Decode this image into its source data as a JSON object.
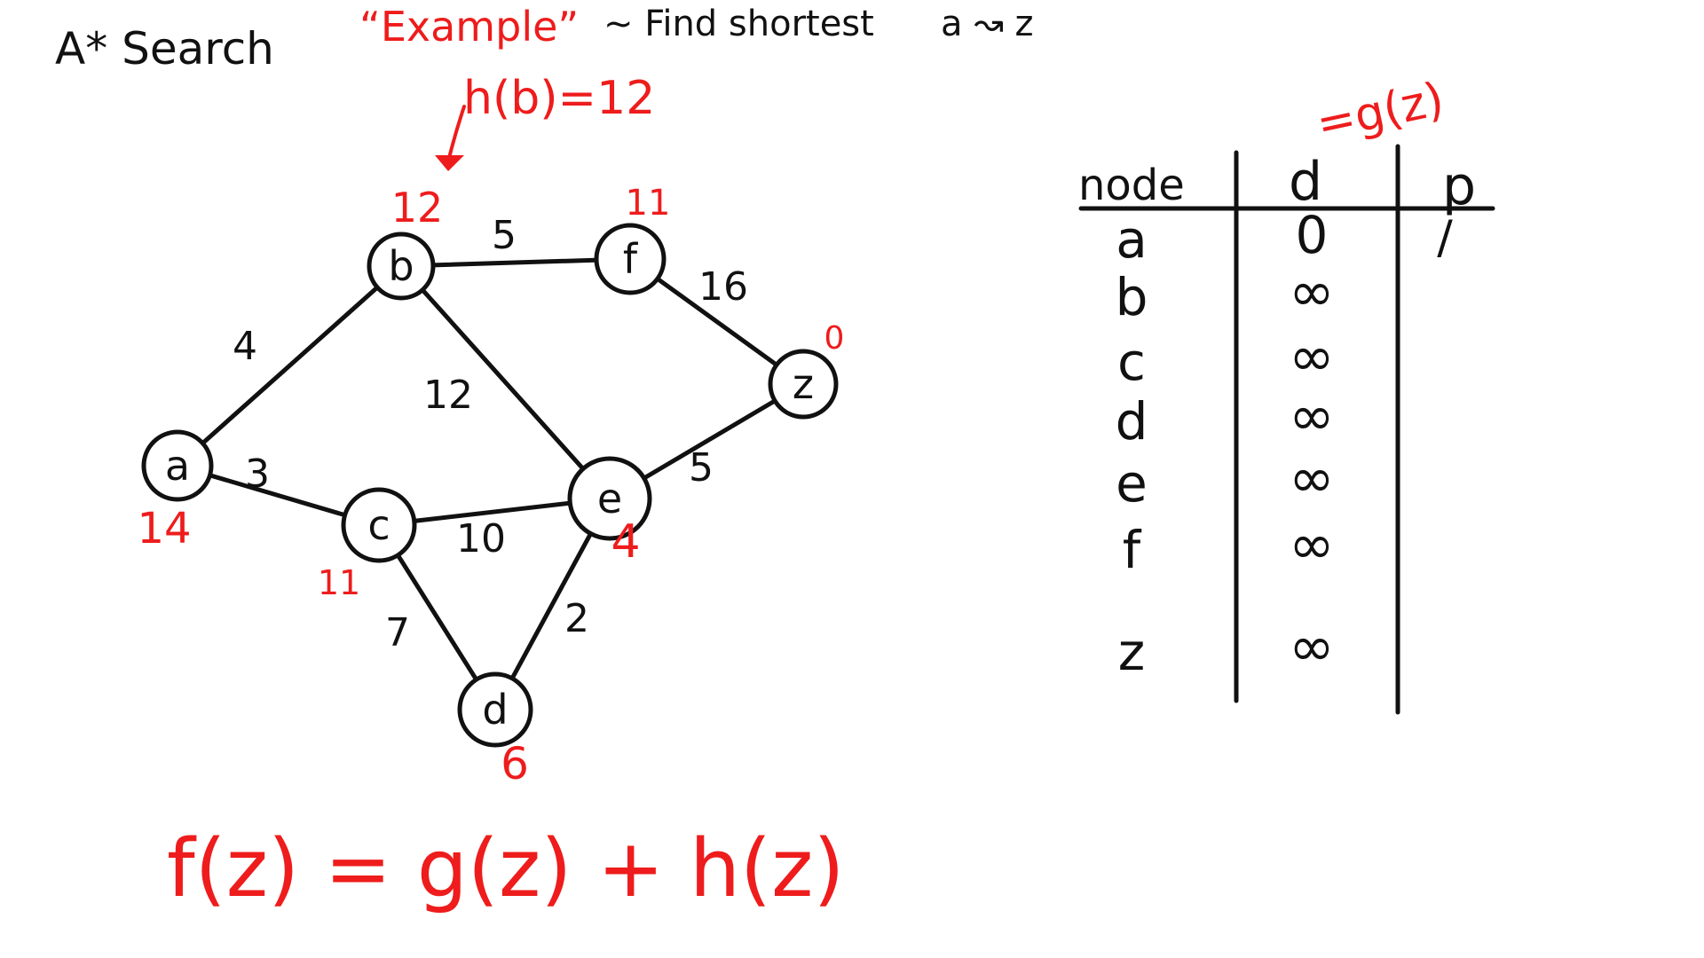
{
  "header": {
    "part1": "A* Search",
    "part2": "“Example”",
    "part3": "~ Find shortest",
    "part4": "a ↝ z"
  },
  "colors": {
    "ink": "#111111",
    "accent": "#ee1c1c"
  },
  "annotation": {
    "heuristic_note": "h(b)=12",
    "g_note": "=g(z)"
  },
  "graph": {
    "nodes": [
      {
        "id": "a",
        "label": "a",
        "h": "14"
      },
      {
        "id": "b",
        "label": "b",
        "h": "12"
      },
      {
        "id": "c",
        "label": "c",
        "h": "11"
      },
      {
        "id": "d",
        "label": "d",
        "h": "6"
      },
      {
        "id": "e",
        "label": "e",
        "h": "4"
      },
      {
        "id": "f",
        "label": "f",
        "h": "11"
      },
      {
        "id": "z",
        "label": "z",
        "h": "0"
      }
    ],
    "edges": [
      {
        "from": "a",
        "to": "b",
        "weight": "4"
      },
      {
        "from": "a",
        "to": "c",
        "weight": "3"
      },
      {
        "from": "b",
        "to": "f",
        "weight": "5"
      },
      {
        "from": "b",
        "to": "e",
        "weight": "12"
      },
      {
        "from": "f",
        "to": "z",
        "weight": "16"
      },
      {
        "from": "c",
        "to": "e",
        "weight": "10"
      },
      {
        "from": "c",
        "to": "d",
        "weight": "7"
      },
      {
        "from": "e",
        "to": "z",
        "weight": "5"
      },
      {
        "from": "d",
        "to": "e",
        "weight": "2"
      }
    ]
  },
  "table": {
    "headers": [
      "node",
      "d",
      "p"
    ],
    "rows": [
      {
        "node": "a",
        "d": "0",
        "p": "/"
      },
      {
        "node": "b",
        "d": "∞",
        "p": ""
      },
      {
        "node": "c",
        "d": "∞",
        "p": ""
      },
      {
        "node": "d",
        "d": "∞",
        "p": ""
      },
      {
        "node": "e",
        "d": "∞",
        "p": ""
      },
      {
        "node": "f",
        "d": "∞",
        "p": ""
      },
      {
        "node": "z",
        "d": "∞",
        "p": ""
      }
    ]
  },
  "formula": "f(z) = g(z) + h(z)"
}
